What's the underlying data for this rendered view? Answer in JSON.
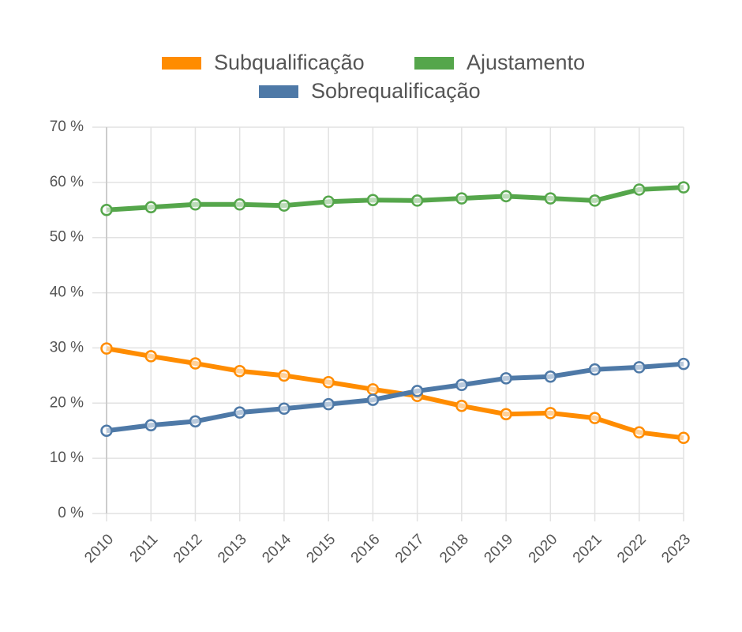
{
  "chart_data": {
    "type": "line",
    "categories": [
      "2010",
      "2011",
      "2012",
      "2013",
      "2014",
      "2015",
      "2016",
      "2017",
      "2018",
      "2019",
      "2020",
      "2021",
      "2022",
      "2023"
    ],
    "series": [
      {
        "name": "Subqualificação",
        "color": "#ff8c00",
        "values": [
          29.9,
          28.5,
          27.2,
          25.8,
          25.0,
          23.8,
          22.5,
          21.3,
          19.5,
          18.0,
          18.2,
          17.3,
          14.7,
          13.7
        ]
      },
      {
        "name": "Ajustamento",
        "color": "#55a64b",
        "values": [
          55.0,
          55.5,
          56.0,
          56.0,
          55.8,
          56.5,
          56.8,
          56.7,
          57.1,
          57.5,
          57.1,
          56.7,
          58.7,
          59.1
        ]
      },
      {
        "name": "Sobrequalificação",
        "color": "#4e79a7",
        "values": [
          15.0,
          16.0,
          16.7,
          18.3,
          19.0,
          19.8,
          20.6,
          22.2,
          23.3,
          24.5,
          24.8,
          26.1,
          26.5,
          27.1
        ]
      }
    ],
    "ylim": [
      0,
      70
    ],
    "yticks": [
      {
        "value": 0,
        "label": "0 %"
      },
      {
        "value": 10,
        "label": "10 %"
      },
      {
        "value": 20,
        "label": "20 %"
      },
      {
        "value": 30,
        "label": "30 %"
      },
      {
        "value": 40,
        "label": "40 %"
      },
      {
        "value": 50,
        "label": "50 %"
      },
      {
        "value": 60,
        "label": "60 %"
      },
      {
        "value": 70,
        "label": "70 %"
      }
    ],
    "grid": true
  }
}
